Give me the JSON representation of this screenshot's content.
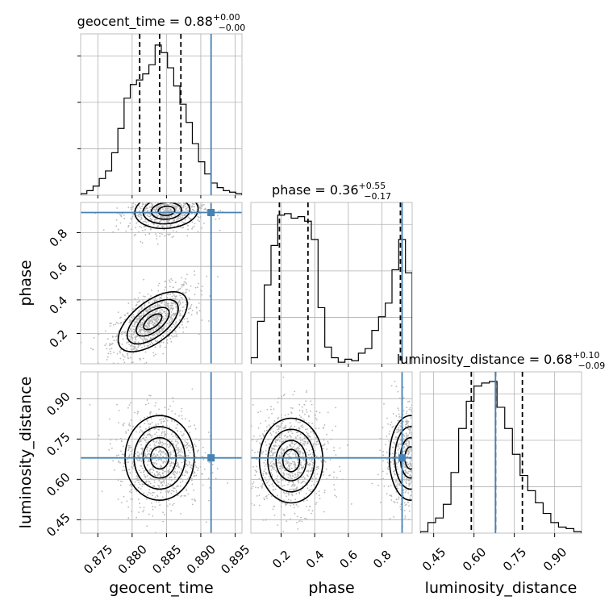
{
  "chart_data": {
    "type": "corner",
    "parameters": [
      {
        "name": "geocent_time",
        "axis_label": "geocent_time",
        "title_prefix": "geocent_time = 0.88",
        "title_sup": "+0.00",
        "title_sub": "−0.00",
        "range": [
          0.8725,
          0.896
        ],
        "ticks": [
          0.875,
          0.88,
          0.885,
          0.89,
          0.895
        ],
        "tick_labels": [
          "0.875",
          "0.880",
          "0.885",
          "0.890",
          "0.895"
        ],
        "quantiles": [
          0.8811,
          0.884,
          0.8871
        ],
        "truth": 0.8915,
        "hist_values": [
          0.01,
          0.03,
          0.06,
          0.11,
          0.16,
          0.28,
          0.44,
          0.64,
          0.73,
          0.76,
          0.8,
          0.86,
          0.99,
          0.94,
          0.84,
          0.72,
          0.6,
          0.48,
          0.34,
          0.22,
          0.14,
          0.08,
          0.05,
          0.03,
          0.02,
          0.01
        ]
      },
      {
        "name": "phase",
        "axis_label": "phase",
        "title_prefix": "phase = 0.36",
        "title_sup": "+0.55",
        "title_sub": "−0.17",
        "range": [
          0.02,
          0.98
        ],
        "ticks": [
          0.2,
          0.4,
          0.6,
          0.8
        ],
        "tick_labels": [
          "0.2",
          "0.4",
          "0.6",
          "0.8"
        ],
        "quantiles": [
          0.19,
          0.36,
          0.91
        ],
        "truth": 0.92,
        "hist_values": [
          0.04,
          0.28,
          0.52,
          0.78,
          0.98,
          0.99,
          0.96,
          0.97,
          0.94,
          0.82,
          0.37,
          0.11,
          0.04,
          0.01,
          0.03,
          0.02,
          0.07,
          0.1,
          0.22,
          0.31,
          0.4,
          0.62,
          0.82,
          0.6
        ]
      },
      {
        "name": "luminosity_distance",
        "axis_label": "luminosity_distance",
        "title_prefix": "luminosity_distance = 0.68",
        "title_sup": "+0.10",
        "title_sub": "−0.09",
        "range": [
          0.4,
          1.0
        ],
        "ticks": [
          0.45,
          0.6,
          0.75,
          0.9
        ],
        "tick_labels": [
          "0.45",
          "0.60",
          "0.75",
          "0.90"
        ],
        "quantiles": [
          0.59,
          0.68,
          0.78
        ],
        "truth": 0.68,
        "hist_values": [
          0.01,
          0.07,
          0.1,
          0.19,
          0.4,
          0.69,
          0.87,
          0.97,
          0.99,
          1.0,
          0.83,
          0.69,
          0.52,
          0.38,
          0.28,
          0.2,
          0.13,
          0.07,
          0.04,
          0.03,
          0.01
        ]
      }
    ],
    "pair_plots": [
      {
        "x": "geocent_time",
        "y": "phase",
        "modes": [
          {
            "cx": 0.883,
            "cy": 0.27,
            "sx": 0.0024,
            "sy": 0.085,
            "rho": 0.6,
            "weight": 1.0
          },
          {
            "cx": 0.885,
            "cy": 0.93,
            "sx": 0.0022,
            "sy": 0.05,
            "rho": 0.1,
            "weight": 0.8
          }
        ]
      },
      {
        "x": "geocent_time",
        "y": "luminosity_distance",
        "modes": [
          {
            "cx": 0.884,
            "cy": 0.68,
            "sx": 0.0024,
            "sy": 0.075,
            "rho": 0.0,
            "weight": 1.0
          }
        ]
      },
      {
        "x": "phase",
        "y": "luminosity_distance",
        "modes": [
          {
            "cx": 0.26,
            "cy": 0.67,
            "sx": 0.09,
            "sy": 0.075,
            "rho": 0.0,
            "weight": 1.0
          },
          {
            "cx": 0.97,
            "cy": 0.68,
            "sx": 0.06,
            "sy": 0.075,
            "rho": 0.0,
            "weight": 0.9
          }
        ]
      }
    ],
    "truth_color": "#4682b4",
    "grid": true,
    "quantile_levels": [
      0.16,
      0.5,
      0.84
    ]
  }
}
